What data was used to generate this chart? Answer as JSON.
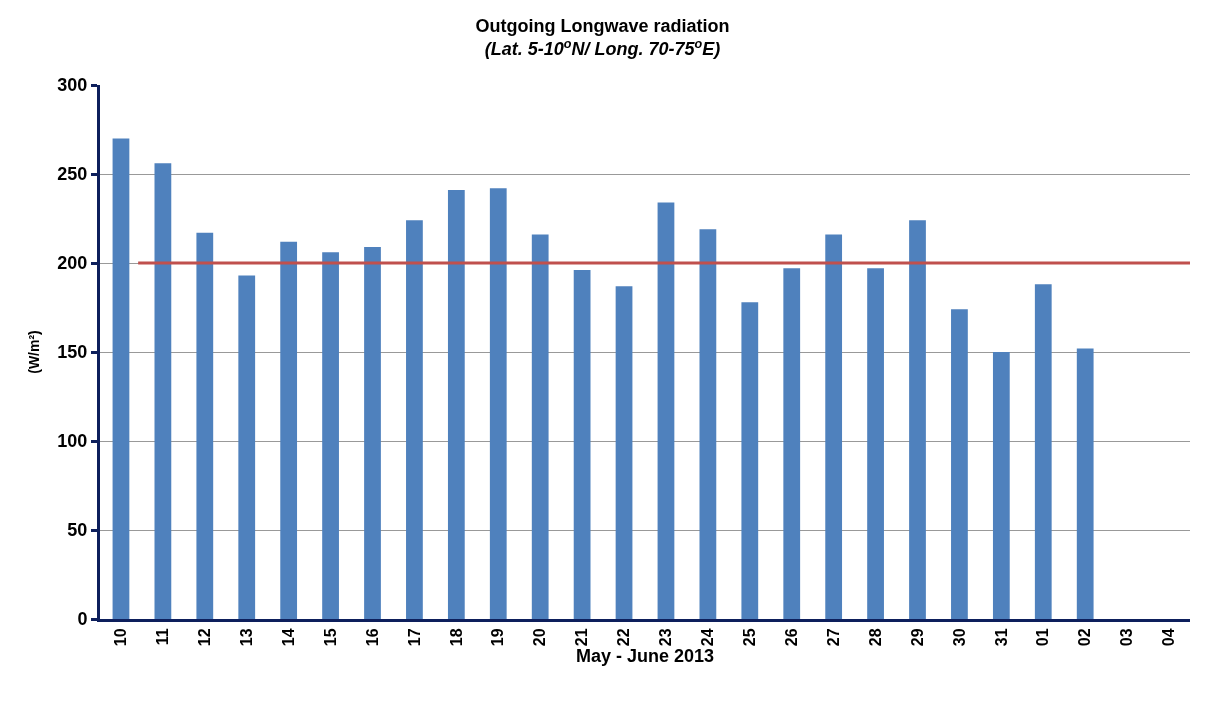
{
  "chart_data": {
    "type": "bar",
    "title": "Outgoing Longwave radiation",
    "subtitle": "(Lat. 5-10$^{o}$N/ Long. 70-75$^{o}$E)",
    "xlabel": "May - June 2013",
    "ylabel": "(W/m²)",
    "categories": [
      "10",
      "11",
      "12",
      "13",
      "14",
      "15",
      "16",
      "17",
      "18",
      "19",
      "20",
      "21",
      "22",
      "23",
      "24",
      "25",
      "26",
      "27",
      "28",
      "29",
      "30",
      "31",
      "01",
      "02",
      "03",
      "04"
    ],
    "values": [
      270,
      256,
      217,
      193,
      212,
      206,
      209,
      224,
      241,
      242,
      216,
      196,
      187,
      234,
      219,
      178,
      197,
      216,
      197,
      224,
      174,
      150,
      188,
      152,
      null,
      null
    ],
    "color": "#4f81bd",
    "ylim": [
      0,
      300
    ],
    "yticks": [
      0,
      50,
      100,
      150,
      200,
      250,
      300
    ],
    "grid": "y",
    "ref_lines": [
      {
        "axis": "y",
        "value": 200,
        "color": "#c0504d"
      }
    ]
  }
}
